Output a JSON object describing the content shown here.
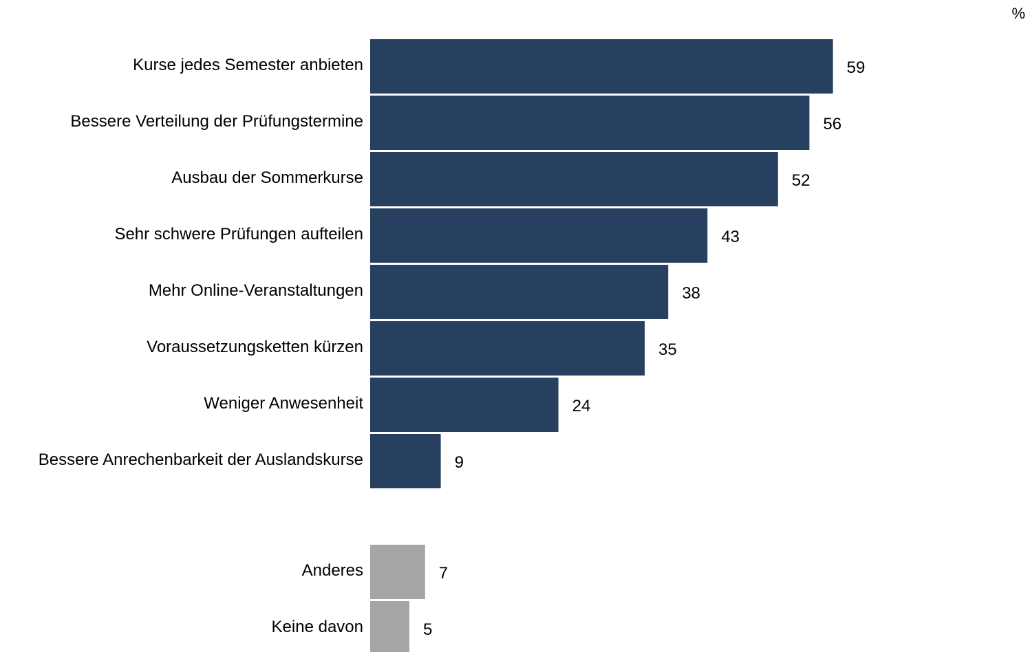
{
  "chart_data": {
    "type": "bar",
    "orientation": "horizontal",
    "unit": "%",
    "colors": {
      "primary": "#27405f",
      "secondary": "#a6a6a6"
    },
    "categories": [
      "Kurse jedes Semester anbieten",
      "Bessere Verteilung der Prüfungstermine",
      "Ausbau der Sommerkurse",
      "Sehr schwere Prüfungen aufteilen",
      "Mehr Online-Veranstaltungen",
      "Voraussetzungsketten kürzen",
      "Weniger Anwesenheit",
      "Bessere Anrechenbarkeit der Auslandskurse",
      "Anderes",
      "Keine davon"
    ],
    "values": [
      59,
      56,
      52,
      43,
      38,
      35,
      24,
      9,
      7,
      5
    ],
    "groups": [
      "primary",
      "primary",
      "primary",
      "primary",
      "primary",
      "primary",
      "primary",
      "primary",
      "secondary",
      "secondary"
    ]
  }
}
